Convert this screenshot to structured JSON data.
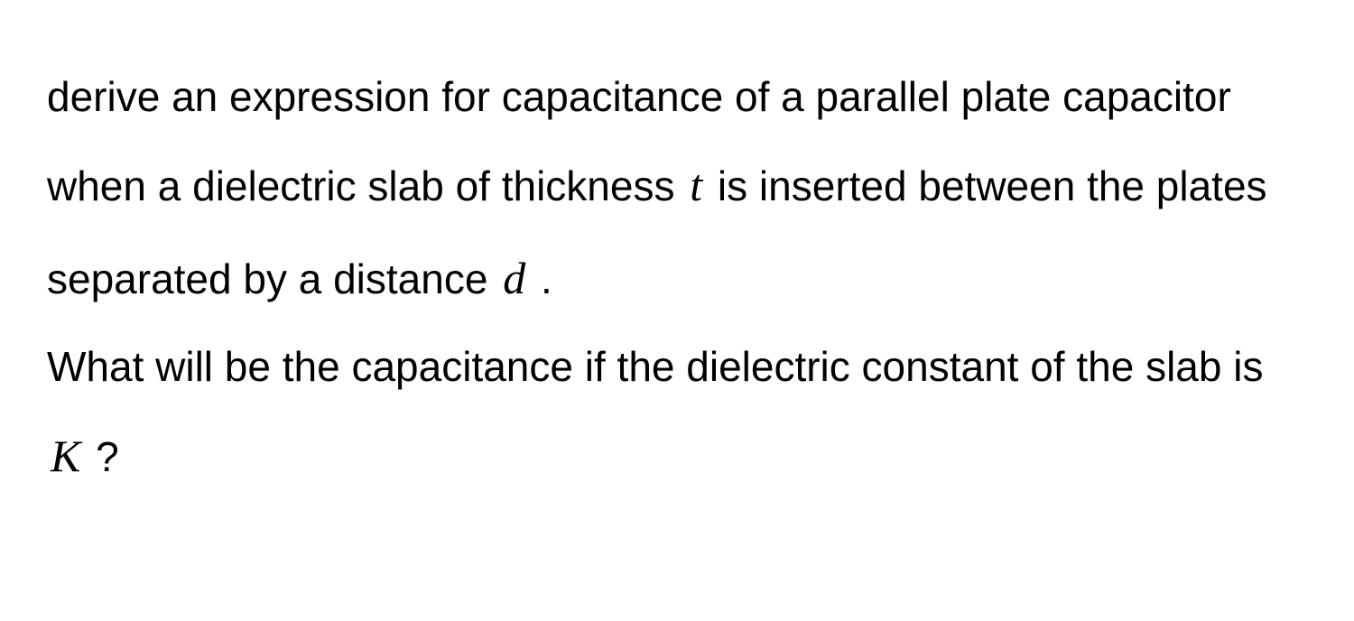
{
  "text": {
    "part1": "derive an expression for capacitance of a parallel plate capacitor when a dielectric slab of thickness ",
    "var_t": "t",
    "part2": " is inserted between the plates separated by a distance ",
    "var_d": "d",
    "part3": " .",
    "part4": "What will be the capacitance if the dielectric constant of the slab is ",
    "var_k": "K",
    "part5": " ?"
  },
  "styling": {
    "background_color": "#ffffff",
    "text_color": "#000000",
    "font_size": 46,
    "line_height": 2.05,
    "math_font": "Times New Roman",
    "math_font_style": "italic",
    "math_font_size": 50,
    "body_font": "-apple-system, Helvetica, Arial, sans-serif"
  }
}
